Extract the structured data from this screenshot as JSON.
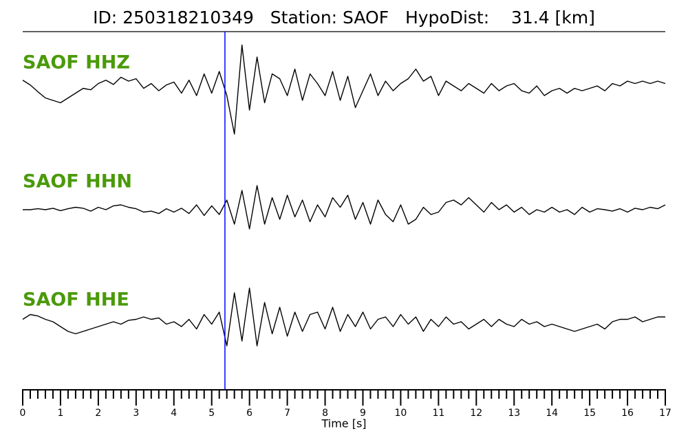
{
  "chart_data": {
    "type": "line",
    "title": "ID: 250318210349   Station: SAOF   HypoDist:    31.4 [km]",
    "x_label": "Time [s]",
    "xlim": [
      0,
      17
    ],
    "xticks": [
      0,
      1,
      2,
      3,
      4,
      5,
      6,
      7,
      8,
      9,
      10,
      11,
      12,
      13,
      14,
      15,
      16,
      17
    ],
    "xminorticks": [
      0.2,
      0.4,
      0.6,
      0.8,
      1.2,
      1.4,
      1.6,
      1.8,
      2.2,
      2.4,
      2.6,
      2.8,
      3.2,
      3.4,
      3.6,
      3.8,
      4.2,
      4.4,
      4.6,
      4.8,
      5.2,
      5.4,
      5.6,
      5.8,
      6.2,
      6.4,
      6.6,
      6.8,
      7.2,
      7.4,
      7.6,
      7.8,
      8.2,
      8.4,
      8.6,
      8.8,
      9.2,
      9.4,
      9.6,
      9.8,
      10.2,
      10.4,
      10.6,
      10.8,
      11.2,
      11.4,
      11.6,
      11.8,
      12.2,
      12.4,
      12.6,
      12.8,
      13.2,
      13.4,
      13.6,
      13.8,
      14.2,
      14.4,
      14.6,
      14.8,
      15.2,
      15.4,
      15.6,
      15.8,
      16.2,
      16.4,
      16.6,
      16.8
    ],
    "ylim": [
      -12,
      12
    ],
    "label_color": "#4a9a0a",
    "pick": {
      "x": 5.35,
      "color": "#0000ff"
    },
    "x": [
      0,
      0.2,
      0.4,
      0.6,
      0.8,
      1,
      1.2,
      1.4,
      1.6,
      1.8,
      2,
      2.2,
      2.4,
      2.6,
      2.8,
      3,
      3.2,
      3.4,
      3.6,
      3.8,
      4,
      4.2,
      4.4,
      4.6,
      4.8,
      5,
      5.2,
      5.4,
      5.6,
      5.8,
      6,
      6.2,
      6.4,
      6.6,
      6.8,
      7,
      7.2,
      7.4,
      7.6,
      7.8,
      8,
      8.2,
      8.4,
      8.6,
      8.8,
      9,
      9.2,
      9.4,
      9.6,
      9.8,
      10,
      10.2,
      10.4,
      10.6,
      10.8,
      11,
      11.2,
      11.4,
      11.6,
      11.8,
      12,
      12.2,
      12.4,
      12.6,
      12.8,
      13,
      13.2,
      13.4,
      13.6,
      13.8,
      14,
      14.2,
      14.4,
      14.6,
      14.8,
      15,
      15.2,
      15.4,
      15.6,
      15.8,
      16,
      16.2,
      16.4,
      16.6,
      16.8,
      17
    ],
    "series": [
      {
        "name": "SAOF HHZ",
        "color": "#000000",
        "values": [
          1.2,
          0.2,
          -1.2,
          -2.5,
          -3,
          -3.5,
          -2.5,
          -1.5,
          -0.5,
          -0.8,
          0.5,
          1.2,
          0.3,
          1.8,
          1,
          1.5,
          -0.5,
          0.5,
          -1,
          0.2,
          0.8,
          -1.5,
          1.2,
          -2,
          2.5,
          -1.5,
          3,
          -2,
          -10,
          8.5,
          -5,
          6,
          -3.5,
          2.5,
          1.5,
          -2,
          3.5,
          -3,
          2.5,
          0.5,
          -2,
          3,
          -3,
          2,
          -4.5,
          -1,
          2.5,
          -2,
          1,
          -1,
          0.5,
          1.5,
          3.5,
          1,
          2,
          -2,
          1,
          0,
          -1,
          0.5,
          -0.5,
          -1.5,
          0.5,
          -1,
          0,
          0.5,
          -1,
          -1.5,
          0,
          -2,
          -1,
          -0.5,
          -1.5,
          -0.5,
          -1,
          -0.5,
          0,
          -1,
          0.5,
          0,
          1,
          0.5,
          1,
          0.5,
          1,
          0.5
        ]
      },
      {
        "name": "SAOF HHN",
        "color": "#000000",
        "values": [
          0,
          0,
          0.2,
          0,
          0.3,
          -0.2,
          0.2,
          0.5,
          0.3,
          -0.3,
          0.5,
          0,
          0.8,
          1,
          0.5,
          0.2,
          -0.5,
          -0.3,
          -0.8,
          0.2,
          -0.5,
          0.3,
          -0.8,
          1,
          -1.2,
          0.8,
          -1,
          2,
          -3,
          4,
          -4,
          5,
          -3,
          2.5,
          -2,
          3,
          -1.5,
          2,
          -2.5,
          1,
          -1.5,
          2.5,
          0.5,
          3,
          -2,
          1.5,
          -3,
          2,
          -1,
          -2.5,
          1,
          -3,
          -2,
          0.5,
          -1,
          -0.5,
          1.5,
          2,
          1,
          2.5,
          1,
          -0.5,
          1.5,
          0,
          1,
          -0.5,
          0.5,
          -1,
          0,
          -0.5,
          0.5,
          -0.5,
          0,
          -1,
          0.5,
          -0.5,
          0.2,
          0,
          -0.3,
          0.2,
          -0.5,
          0.3,
          0,
          0.5,
          0.2,
          1
        ]
      },
      {
        "name": "SAOF HHE",
        "color": "#000000",
        "values": [
          0.5,
          1.5,
          1.2,
          0.5,
          0,
          -1,
          -2,
          -2.5,
          -2,
          -1.5,
          -1,
          -0.5,
          0,
          -0.5,
          0.3,
          0.5,
          1,
          0.5,
          0.8,
          -0.5,
          0,
          -1,
          0.5,
          -1.5,
          1.5,
          -0.5,
          2,
          -5,
          6,
          -4,
          7,
          -5,
          4,
          -2.5,
          3,
          -3,
          2,
          -2,
          1.5,
          2,
          -1.5,
          3,
          -2,
          1.5,
          -1,
          2,
          -1.5,
          0.5,
          1,
          -1,
          1.5,
          -0.5,
          1,
          -2,
          0.5,
          -1,
          1,
          -0.5,
          0,
          -1.5,
          -0.5,
          0.5,
          -1,
          0.5,
          -0.5,
          -1,
          0.5,
          -0.5,
          0,
          -1,
          -0.5,
          -1,
          -1.5,
          -2,
          -1.5,
          -1,
          -0.5,
          -1.5,
          0,
          0.5,
          0.5,
          1,
          0,
          0.5,
          1,
          1
        ]
      }
    ]
  }
}
